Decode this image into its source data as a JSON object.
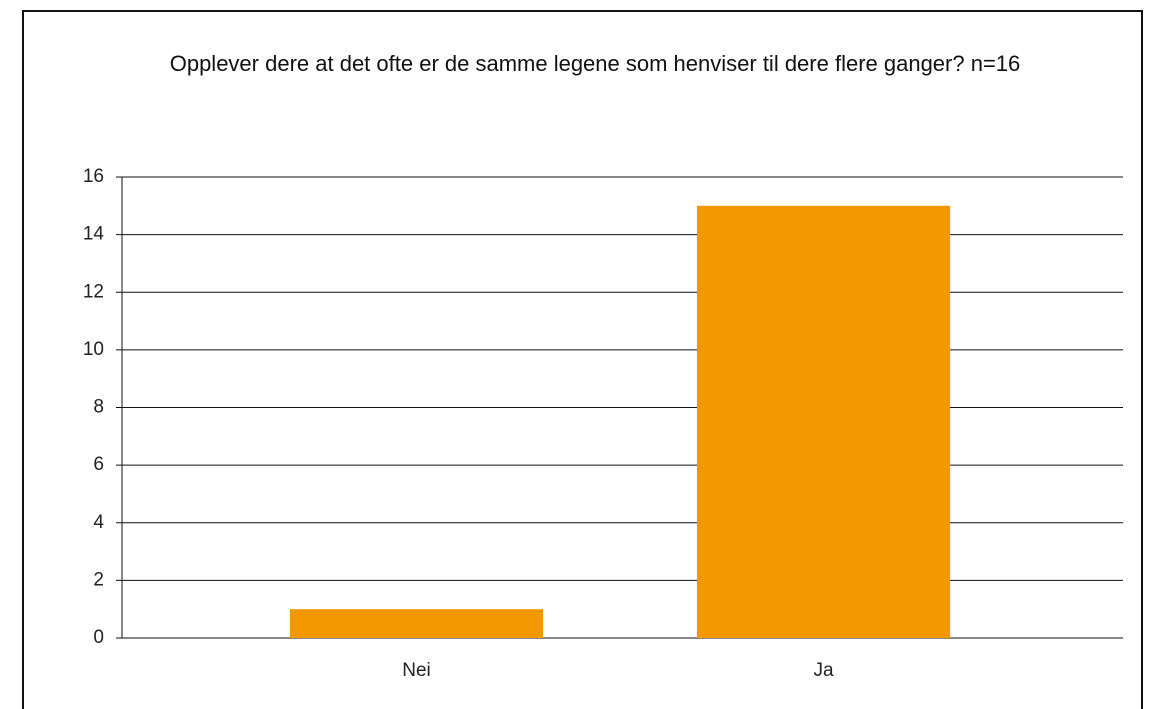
{
  "chart_data": {
    "type": "bar",
    "title": "Opplever dere at det ofte er de samme legene som henviser til dere flere ganger? n=16",
    "categories": [
      "Nei",
      "Ja"
    ],
    "values": [
      1,
      15
    ],
    "color": "#f39800",
    "ylim": [
      0,
      16
    ],
    "yticks": [
      0,
      2,
      4,
      6,
      8,
      10,
      12,
      14,
      16
    ],
    "grid": true
  }
}
